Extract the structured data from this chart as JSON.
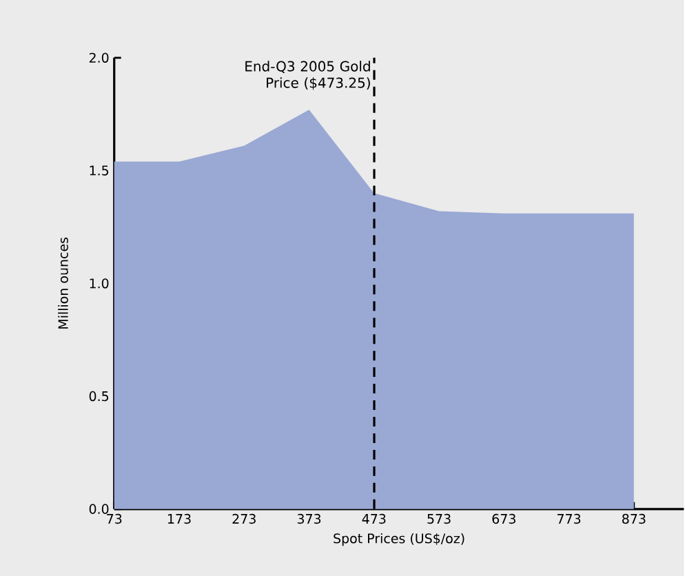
{
  "chart_data": {
    "type": "area",
    "xlabel": "Spot Prices (US$/oz)",
    "ylabel": "Million ounces",
    "x": [
      73,
      173,
      273,
      373,
      473,
      573,
      673,
      773,
      873
    ],
    "series": [
      {
        "color": "#9aa8d4",
        "values": [
          1.54,
          1.54,
          1.61,
          1.77,
          1.4,
          1.32,
          1.31,
          1.31,
          1.31
        ]
      }
    ],
    "xlim": [
      73,
      950
    ],
    "ylim": [
      0,
      2.0
    ],
    "xticks": [
      73,
      173,
      273,
      373,
      473,
      573,
      673,
      773,
      873
    ],
    "yticks": [
      {
        "value": 0,
        "label": "0.0"
      },
      {
        "value": 0.5,
        "label": "0.5"
      },
      {
        "value": 1.0,
        "label": "1.0"
      },
      {
        "value": 1.5,
        "label": "1.5"
      },
      {
        "value": 2.0,
        "label": "2.0"
      }
    ],
    "ref_lines": [
      {
        "axis": "x",
        "value": 473.25,
        "label": "End-Q3 2005 Gold Price ($473.25)",
        "line_style": "dashed",
        "color": "#000000"
      }
    ],
    "grid": false
  }
}
